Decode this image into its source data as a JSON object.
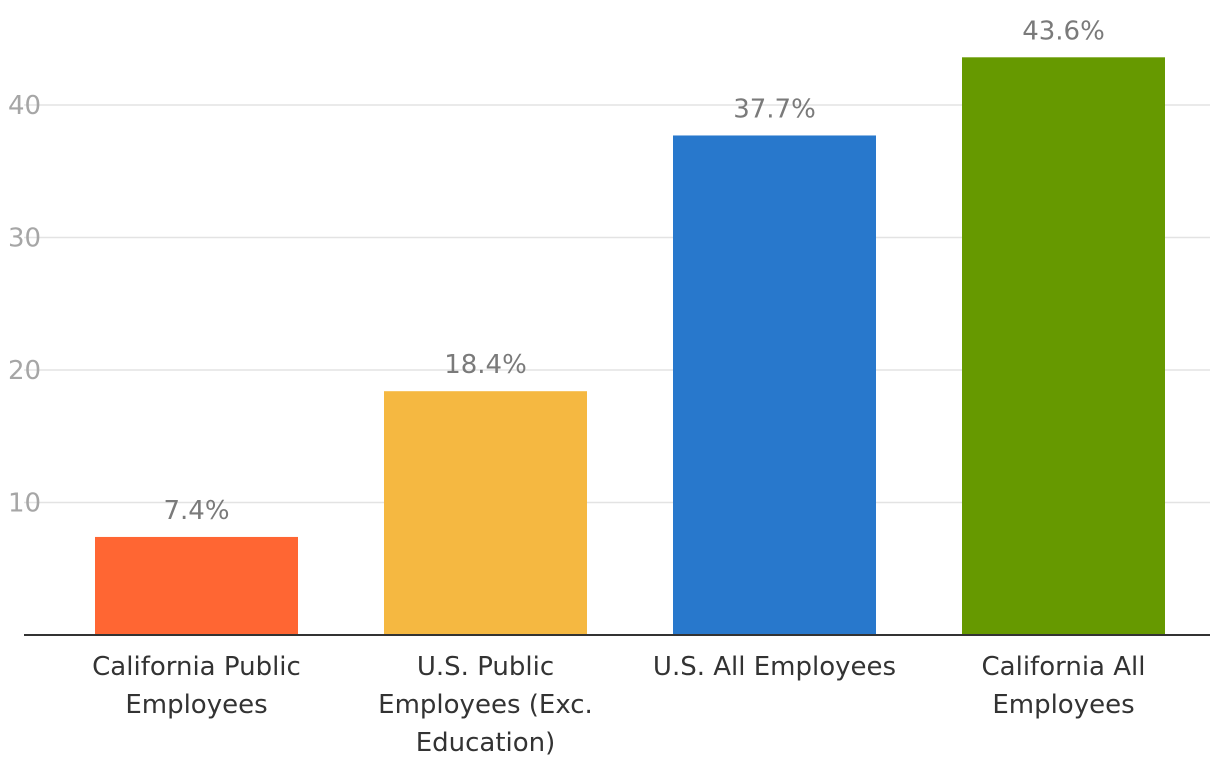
{
  "chart_data": {
    "type": "bar",
    "title": "",
    "xlabel": "",
    "ylabel": "",
    "ylim": [
      0,
      44
    ],
    "yticks": [
      10,
      20,
      30,
      40
    ],
    "grid": true,
    "categories": [
      [
        "California Public",
        "Employees"
      ],
      [
        "U.S. Public",
        "Employees (Exc.",
        "Education)"
      ],
      [
        "U.S. All Employees"
      ],
      [
        "California All",
        "Employees"
      ]
    ],
    "values": [
      7.4,
      18.4,
      37.7,
      43.6
    ],
    "value_labels": [
      "7.4%",
      "18.4%",
      "37.7%",
      "43.6%"
    ],
    "colors": [
      "#ff6633",
      "#f5b841",
      "#2878cc",
      "#669900"
    ]
  }
}
